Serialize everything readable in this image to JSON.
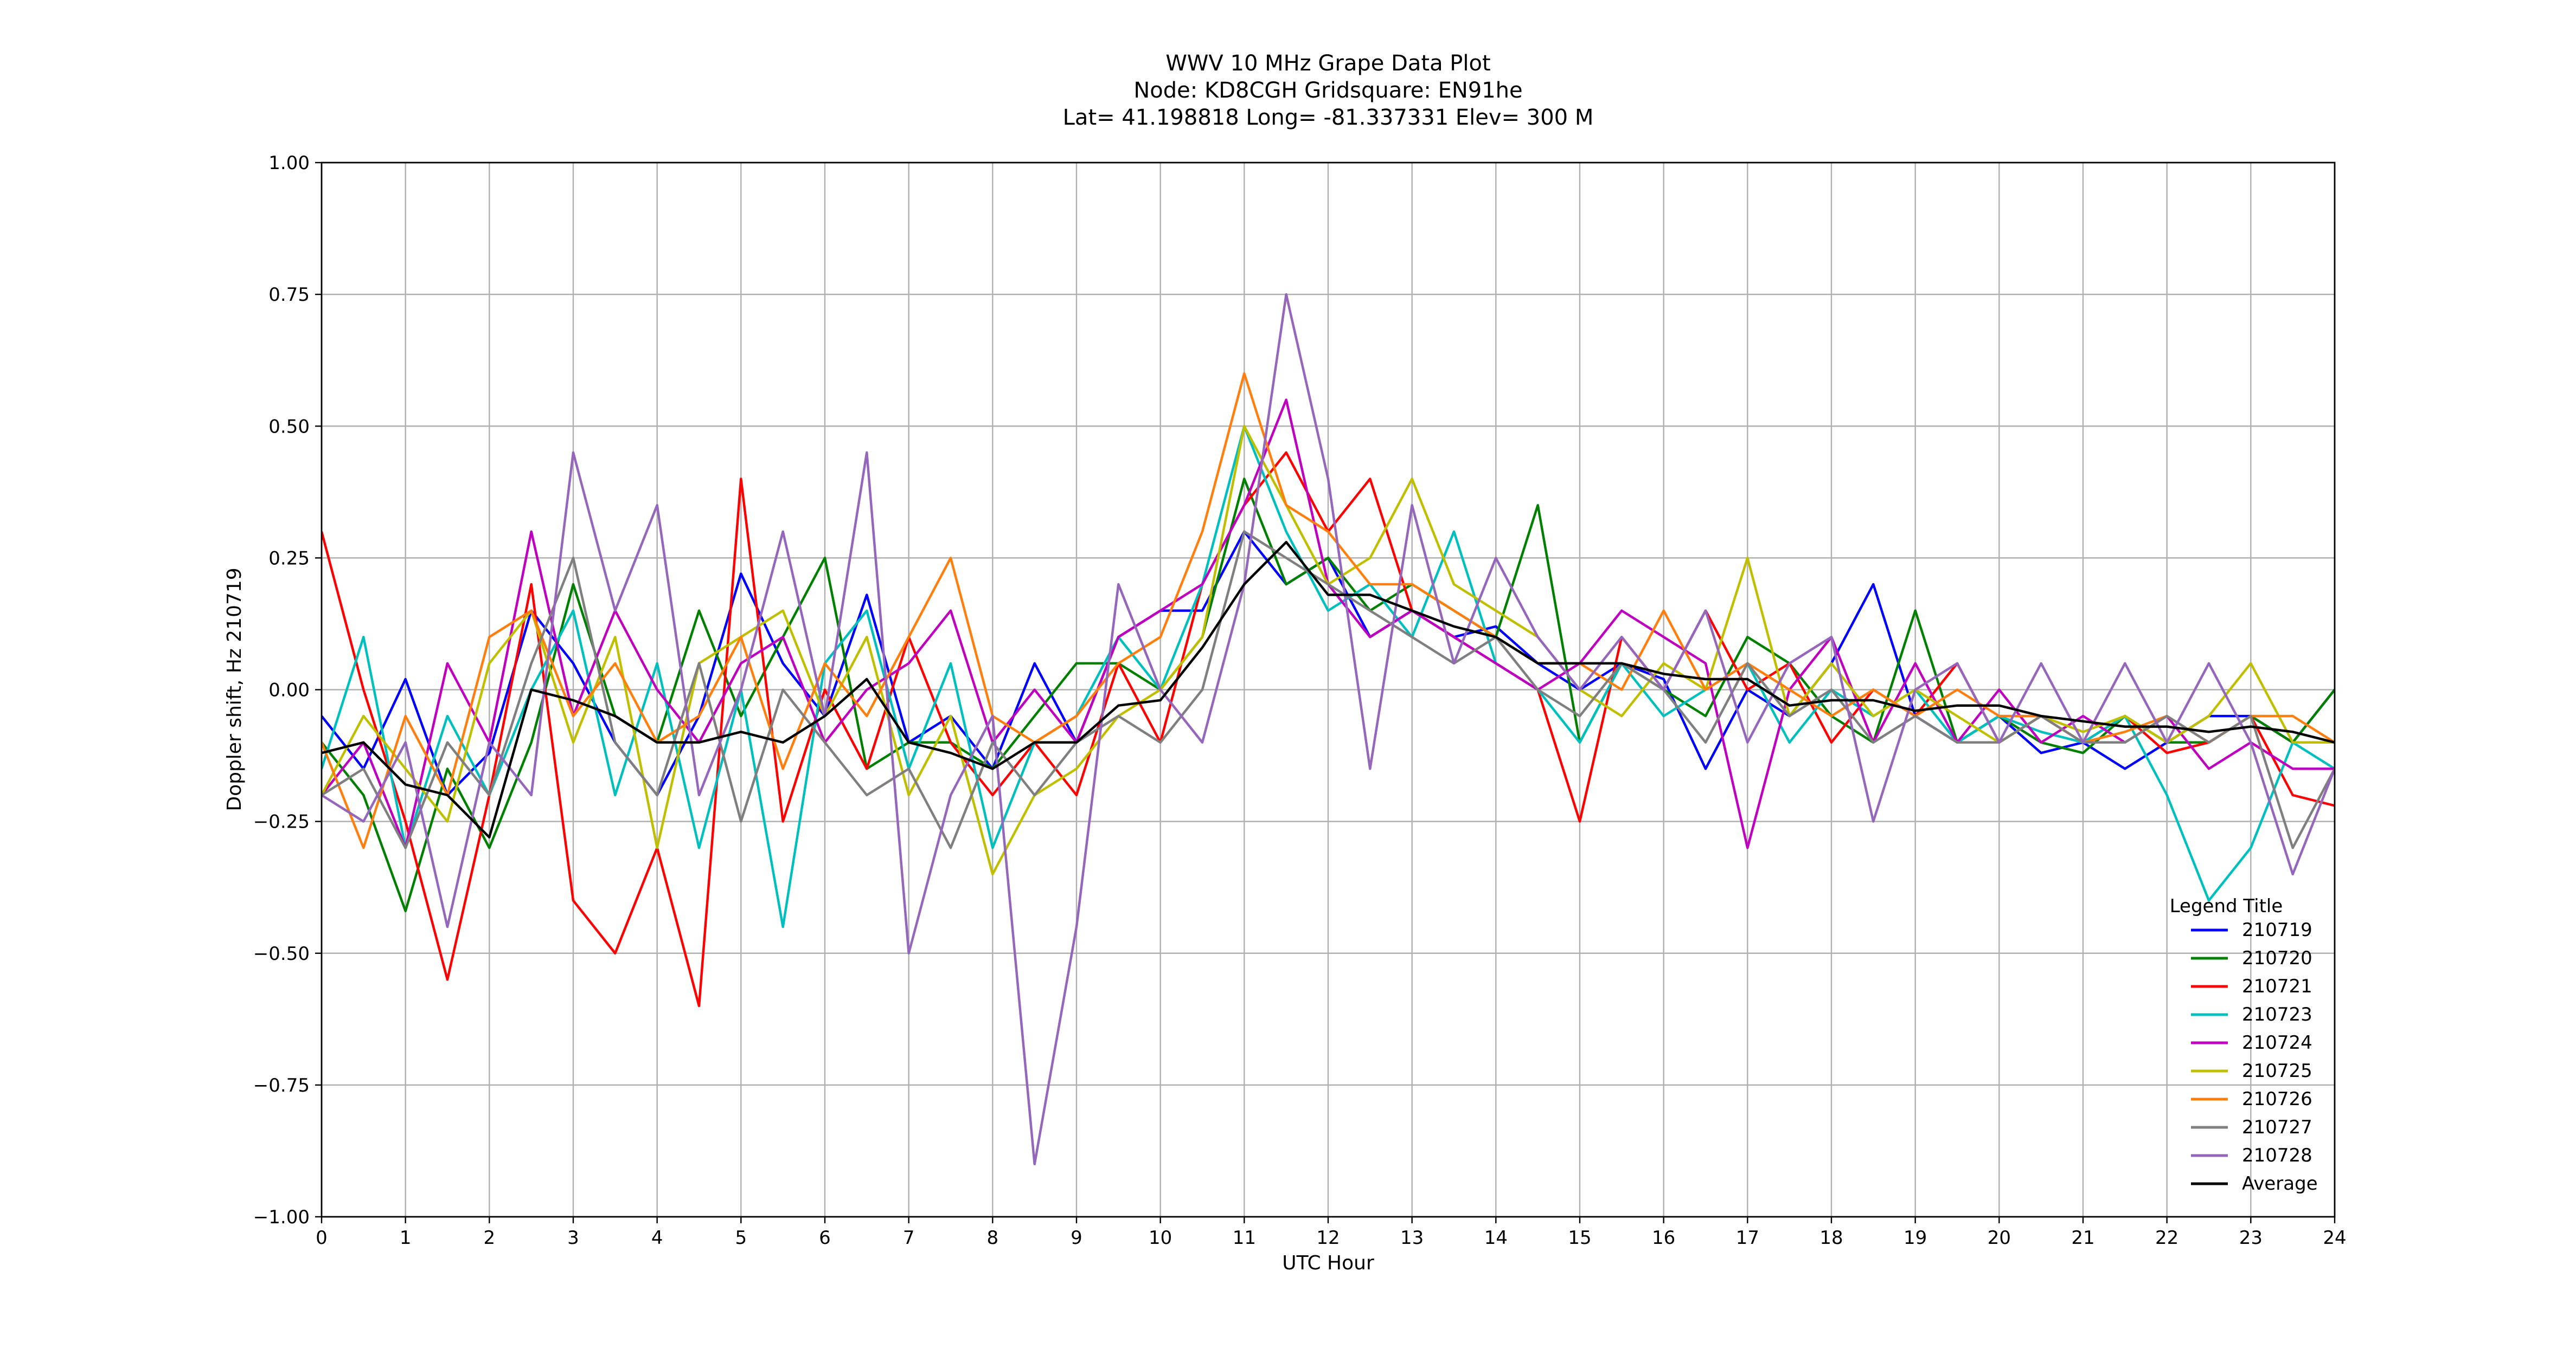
{
  "chart_data": {
    "type": "line",
    "title": [
      "WWV 10 MHz Grape Data Plot",
      "Node:  KD8CGH     Gridsquare:  EN91he",
      "Lat= 41.198818    Long= -81.337331    Elev= 300 M"
    ],
    "xlabel": "UTC Hour",
    "ylabel": "Doppler shift, Hz 210719",
    "xlim": [
      0,
      24
    ],
    "ylim": [
      -1.0,
      1.0
    ],
    "x_ticks": [
      "0",
      "1",
      "2",
      "3",
      "4",
      "5",
      "6",
      "7",
      "8",
      "9",
      "10",
      "11",
      "12",
      "13",
      "14",
      "15",
      "16",
      "17",
      "18",
      "19",
      "20",
      "21",
      "22",
      "23",
      "24"
    ],
    "y_ticks": [
      "1.00",
      "0.75",
      "0.50",
      "0.25",
      "0.00",
      "−0.25",
      "−0.50",
      "−0.75",
      "−1.00"
    ],
    "grid": true,
    "legend": {
      "title": "Legend Title",
      "placement": "lower-right"
    },
    "x": [
      0,
      0.5,
      1,
      1.5,
      2,
      2.5,
      3,
      3.5,
      4,
      4.5,
      5,
      5.5,
      6,
      6.5,
      7,
      7.5,
      8,
      8.5,
      9,
      9.5,
      10,
      10.5,
      11,
      11.5,
      12,
      12.5,
      13,
      13.5,
      14,
      14.5,
      15,
      15.5,
      16,
      16.5,
      17,
      17.5,
      18,
      18.5,
      19,
      19.5,
      20,
      20.5,
      21,
      21.5,
      22,
      22.5,
      23,
      23.5,
      24
    ],
    "series": [
      {
        "name": "210719",
        "color": "#0000ff",
        "values": [
          -0.05,
          -0.15,
          0.02,
          -0.2,
          -0.12,
          0.15,
          0.05,
          -0.1,
          -0.2,
          -0.05,
          0.22,
          0.05,
          -0.05,
          0.18,
          -0.1,
          -0.05,
          -0.15,
          0.05,
          -0.1,
          0.1,
          0.15,
          0.15,
          0.3,
          0.2,
          0.25,
          0.1,
          0.15,
          0.1,
          0.12,
          0.05,
          0.0,
          0.05,
          0.02,
          -0.15,
          0.0,
          -0.05,
          0.05,
          0.2,
          -0.05,
          -0.1,
          -0.05,
          -0.12,
          -0.1,
          -0.15,
          -0.1,
          -0.05,
          -0.05,
          -0.1,
          0.0
        ]
      },
      {
        "name": "210720",
        "color": "#008000",
        "values": [
          -0.1,
          -0.2,
          -0.42,
          -0.15,
          -0.3,
          -0.1,
          0.2,
          -0.05,
          -0.1,
          0.15,
          -0.05,
          0.1,
          0.25,
          -0.15,
          -0.1,
          -0.1,
          -0.15,
          -0.05,
          0.05,
          0.05,
          0.0,
          0.1,
          0.4,
          0.2,
          0.25,
          0.15,
          0.2,
          0.15,
          0.1,
          0.35,
          -0.1,
          0.05,
          0.0,
          -0.05,
          0.1,
          0.05,
          -0.05,
          -0.1,
          0.15,
          -0.1,
          -0.05,
          -0.1,
          -0.12,
          -0.05,
          -0.1,
          -0.1,
          -0.05,
          -0.1,
          0.0
        ]
      },
      {
        "name": "210721",
        "color": "#ff0000",
        "values": [
          0.3,
          0.0,
          -0.25,
          -0.55,
          -0.2,
          0.2,
          -0.4,
          -0.5,
          -0.3,
          -0.6,
          0.4,
          -0.25,
          0.0,
          -0.15,
          0.1,
          -0.1,
          -0.2,
          -0.1,
          -0.2,
          0.05,
          -0.1,
          0.2,
          0.35,
          0.45,
          0.3,
          0.4,
          0.15,
          0.1,
          0.05,
          0.0,
          -0.25,
          0.1,
          0.0,
          0.15,
          0.0,
          0.05,
          -0.1,
          0.0,
          -0.05,
          0.05,
          -0.1,
          -0.05,
          -0.1,
          -0.05,
          -0.12,
          -0.1,
          -0.05,
          -0.2,
          -0.22
        ]
      },
      {
        "name": "210723",
        "color": "#00bfbf",
        "values": [
          -0.15,
          0.1,
          -0.3,
          -0.05,
          -0.2,
          0.0,
          0.15,
          -0.2,
          0.05,
          -0.3,
          0.0,
          -0.45,
          0.05,
          0.15,
          -0.15,
          0.05,
          -0.3,
          -0.1,
          -0.05,
          0.1,
          0.0,
          0.2,
          0.5,
          0.3,
          0.15,
          0.2,
          0.1,
          0.3,
          0.05,
          0.0,
          -0.1,
          0.05,
          -0.05,
          0.0,
          0.05,
          -0.1,
          0.0,
          -0.05,
          0.0,
          -0.1,
          -0.05,
          -0.08,
          -0.1,
          -0.05,
          -0.2,
          -0.4,
          -0.3,
          -0.1,
          -0.15
        ]
      },
      {
        "name": "210724",
        "color": "#bf00bf",
        "values": [
          -0.2,
          -0.1,
          -0.3,
          0.05,
          -0.1,
          0.3,
          -0.05,
          0.15,
          0.0,
          -0.1,
          0.05,
          0.1,
          -0.1,
          0.0,
          0.05,
          0.15,
          -0.1,
          0.0,
          -0.1,
          0.1,
          0.15,
          0.2,
          0.35,
          0.55,
          0.2,
          0.1,
          0.15,
          0.1,
          0.05,
          0.0,
          0.05,
          0.15,
          0.1,
          0.05,
          -0.3,
          0.0,
          0.1,
          -0.1,
          0.05,
          -0.1,
          0.0,
          -0.1,
          -0.05,
          -0.1,
          -0.05,
          -0.15,
          -0.1,
          -0.15,
          -0.15
        ]
      },
      {
        "name": "210725",
        "color": "#bfbf00",
        "values": [
          -0.2,
          -0.05,
          -0.15,
          -0.25,
          0.05,
          0.15,
          -0.1,
          0.1,
          -0.3,
          0.05,
          0.1,
          0.15,
          -0.05,
          0.1,
          -0.2,
          -0.05,
          -0.35,
          -0.2,
          -0.15,
          -0.05,
          0.0,
          0.1,
          0.5,
          0.35,
          0.2,
          0.25,
          0.4,
          0.2,
          0.15,
          0.1,
          0.0,
          -0.05,
          0.05,
          0.0,
          0.25,
          -0.05,
          0.05,
          -0.05,
          0.0,
          -0.05,
          -0.1,
          -0.05,
          -0.08,
          -0.05,
          -0.1,
          -0.05,
          0.05,
          -0.1,
          -0.1
        ]
      },
      {
        "name": "210726",
        "color": "#ff7f0e",
        "values": [
          -0.1,
          -0.3,
          -0.05,
          -0.2,
          0.1,
          0.15,
          -0.05,
          0.05,
          -0.1,
          -0.05,
          0.1,
          -0.15,
          0.05,
          -0.05,
          0.1,
          0.25,
          -0.05,
          -0.1,
          -0.05,
          0.05,
          0.1,
          0.3,
          0.6,
          0.35,
          0.3,
          0.2,
          0.2,
          0.15,
          0.1,
          0.05,
          0.05,
          0.0,
          0.15,
          0.0,
          0.05,
          0.0,
          -0.05,
          0.0,
          -0.05,
          0.0,
          -0.05,
          -0.05,
          -0.1,
          -0.08,
          -0.05,
          -0.1,
          -0.05,
          -0.05,
          -0.1
        ]
      },
      {
        "name": "210727",
        "color": "#7f7f7f",
        "values": [
          -0.2,
          -0.15,
          -0.3,
          -0.1,
          -0.2,
          0.05,
          0.25,
          -0.1,
          -0.2,
          0.05,
          -0.25,
          0.0,
          -0.1,
          -0.2,
          -0.15,
          -0.3,
          -0.1,
          -0.2,
          -0.1,
          -0.05,
          -0.1,
          0.0,
          0.3,
          0.25,
          0.2,
          0.15,
          0.1,
          0.05,
          0.1,
          0.0,
          -0.05,
          0.05,
          0.0,
          -0.1,
          0.05,
          -0.05,
          0.0,
          -0.1,
          -0.05,
          -0.1,
          -0.1,
          -0.05,
          -0.1,
          -0.1,
          -0.05,
          -0.1,
          -0.05,
          -0.3,
          -0.15
        ]
      },
      {
        "name": "210728",
        "color": "#9467bd",
        "values": [
          -0.2,
          -0.25,
          -0.1,
          -0.45,
          -0.1,
          -0.2,
          0.45,
          0.15,
          0.35,
          -0.2,
          0.0,
          0.3,
          -0.05,
          0.45,
          -0.5,
          -0.2,
          -0.05,
          -0.9,
          -0.45,
          0.2,
          0.0,
          -0.1,
          0.2,
          0.75,
          0.4,
          -0.15,
          0.35,
          0.05,
          0.25,
          0.1,
          0.0,
          0.1,
          0.0,
          0.15,
          -0.1,
          0.05,
          0.1,
          -0.25,
          0.0,
          0.05,
          -0.1,
          0.05,
          -0.1,
          0.05,
          -0.1,
          0.05,
          -0.1,
          -0.35,
          -0.15
        ]
      },
      {
        "name": "Average",
        "color": "#000000",
        "values": [
          -0.12,
          -0.1,
          -0.18,
          -0.2,
          -0.28,
          0.0,
          -0.02,
          -0.05,
          -0.1,
          -0.1,
          -0.08,
          -0.1,
          -0.05,
          0.02,
          -0.1,
          -0.12,
          -0.15,
          -0.1,
          -0.1,
          -0.03,
          -0.02,
          0.08,
          0.2,
          0.28,
          0.18,
          0.18,
          0.15,
          0.12,
          0.1,
          0.05,
          0.05,
          0.05,
          0.03,
          0.02,
          0.02,
          -0.03,
          -0.02,
          -0.02,
          -0.04,
          -0.03,
          -0.03,
          -0.05,
          -0.06,
          -0.07,
          -0.07,
          -0.08,
          -0.07,
          -0.08,
          -0.1
        ]
      }
    ]
  }
}
